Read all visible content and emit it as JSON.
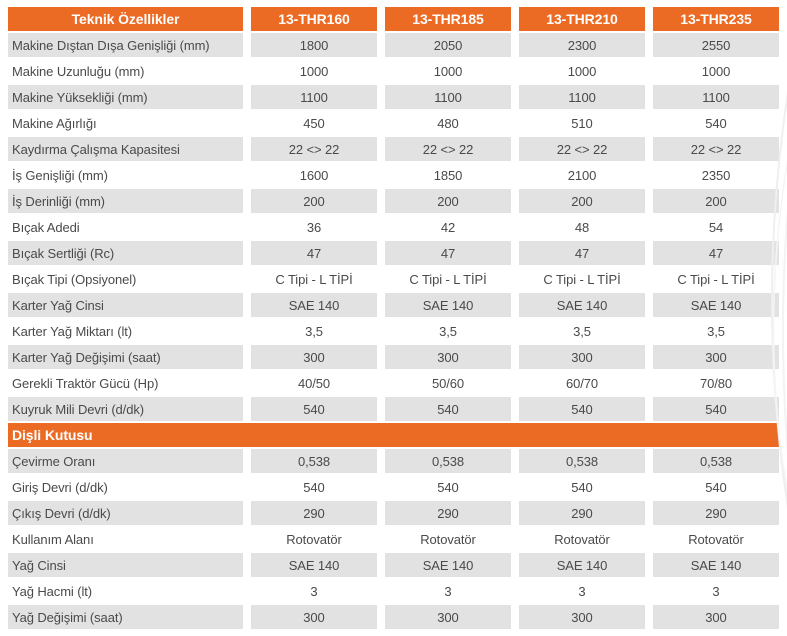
{
  "colors": {
    "accent": "#EB6A24",
    "row_alt": "#E3E2E2",
    "text": "#4A4A4A",
    "header_text": "#FFFFFF"
  },
  "table": {
    "header": {
      "label": "Teknik Özellikler",
      "columns": [
        "13-THR160",
        "13-THR185",
        "13-THR210",
        "13-THR235"
      ]
    },
    "rows": [
      {
        "label": "Makine Dıştan Dışa Genişliği (mm)",
        "values": [
          "1800",
          "2050",
          "2300",
          "2550"
        ]
      },
      {
        "label": "Makine Uzunluğu (mm)",
        "values": [
          "1000",
          "1000",
          "1000",
          "1000"
        ]
      },
      {
        "label": "Makine Yüksekliği (mm)",
        "values": [
          "1100",
          "1100",
          "1100",
          "1100"
        ]
      },
      {
        "label": "Makine Ağırlığı",
        "values": [
          "450",
          "480",
          "510",
          "540"
        ]
      },
      {
        "label": "Kaydırma Çalışma Kapasitesi",
        "values": [
          "22 <> 22",
          "22 <> 22",
          "22 <> 22",
          "22 <> 22"
        ]
      },
      {
        "label": "İş Genişliği (mm)",
        "values": [
          "1600",
          "1850",
          "2100",
          "2350"
        ]
      },
      {
        "label": "İş Derinliği (mm)",
        "values": [
          "200",
          "200",
          "200",
          "200"
        ]
      },
      {
        "label": "Bıçak Adedi",
        "values": [
          "36",
          "42",
          "48",
          "54"
        ]
      },
      {
        "label": "Bıçak Sertliği (Rc)",
        "values": [
          "47",
          "47",
          "47",
          "47"
        ]
      },
      {
        "label": "Bıçak Tipi (Opsiyonel)",
        "values": [
          "C Tipi - L TİPİ",
          "C Tipi - L TİPİ",
          "C Tipi - L TİPİ",
          "C Tipi - L TİPİ"
        ]
      },
      {
        "label": "Karter Yağ Cinsi",
        "values": [
          "SAE 140",
          "SAE 140",
          "SAE 140",
          "SAE 140"
        ]
      },
      {
        "label": "Karter Yağ Miktarı (lt)",
        "values": [
          "3,5",
          "3,5",
          "3,5",
          "3,5"
        ]
      },
      {
        "label": "Karter Yağ Değişimi (saat)",
        "values": [
          "300",
          "300",
          "300",
          "300"
        ]
      },
      {
        "label": "Gerekli Traktör Gücü (Hp)",
        "values": [
          "40/50",
          "50/60",
          "60/70",
          "70/80"
        ]
      },
      {
        "label": "Kuyruk Mili Devri (d/dk)",
        "values": [
          "540",
          "540",
          "540",
          "540"
        ]
      },
      {
        "type": "section",
        "label": "Dişli Kutusu"
      },
      {
        "label": "Çevirme Oranı",
        "values": [
          "0,538",
          "0,538",
          "0,538",
          "0,538"
        ]
      },
      {
        "label": "Giriş Devri (d/dk)",
        "values": [
          "540",
          "540",
          "540",
          "540"
        ]
      },
      {
        "label": "Çıkış Devri (d/dk)",
        "values": [
          "290",
          "290",
          "290",
          "290"
        ]
      },
      {
        "label": "Kullanım Alanı",
        "values": [
          "Rotovatör",
          "Rotovatör",
          "Rotovatör",
          "Rotovatör"
        ]
      },
      {
        "label": "Yağ Cinsi",
        "values": [
          "SAE 140",
          "SAE 140",
          "SAE 140",
          "SAE 140"
        ]
      },
      {
        "label": "Yağ Hacmi (lt)",
        "values": [
          "3",
          "3",
          "3",
          "3"
        ]
      },
      {
        "label": "Yağ Değişimi (saat)",
        "values": [
          "300",
          "300",
          "300",
          "300"
        ]
      }
    ]
  }
}
